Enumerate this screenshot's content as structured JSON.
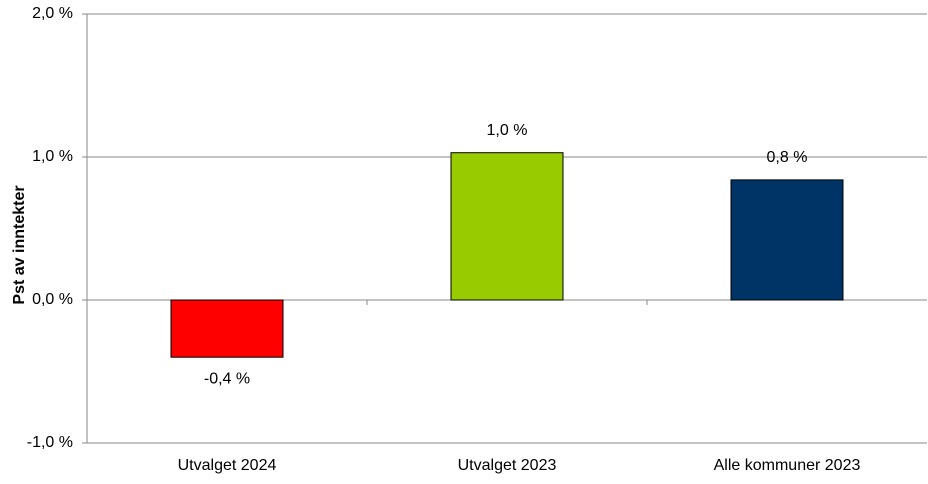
{
  "chart_data": {
    "type": "bar",
    "y_label": "Pst av inntekter",
    "categories": [
      "Utvalget 2024",
      "Utvalget 2023",
      "Alle kommuner 2023"
    ],
    "values": [
      -0.4,
      1.03,
      0.84
    ],
    "value_labels": [
      "-0,4 %",
      "1,0 %",
      "0,8 %"
    ],
    "colors": [
      "#ff0000",
      "#99cc00",
      "#003366"
    ],
    "ylim": [
      -1,
      2
    ],
    "yticks": [
      {
        "value": -1,
        "label": "-1,0 %"
      },
      {
        "value": 0,
        "label": "0,0 %"
      },
      {
        "value": 1,
        "label": "1,0 %"
      },
      {
        "value": 2,
        "label": "2,0 %"
      }
    ],
    "grid": true
  }
}
